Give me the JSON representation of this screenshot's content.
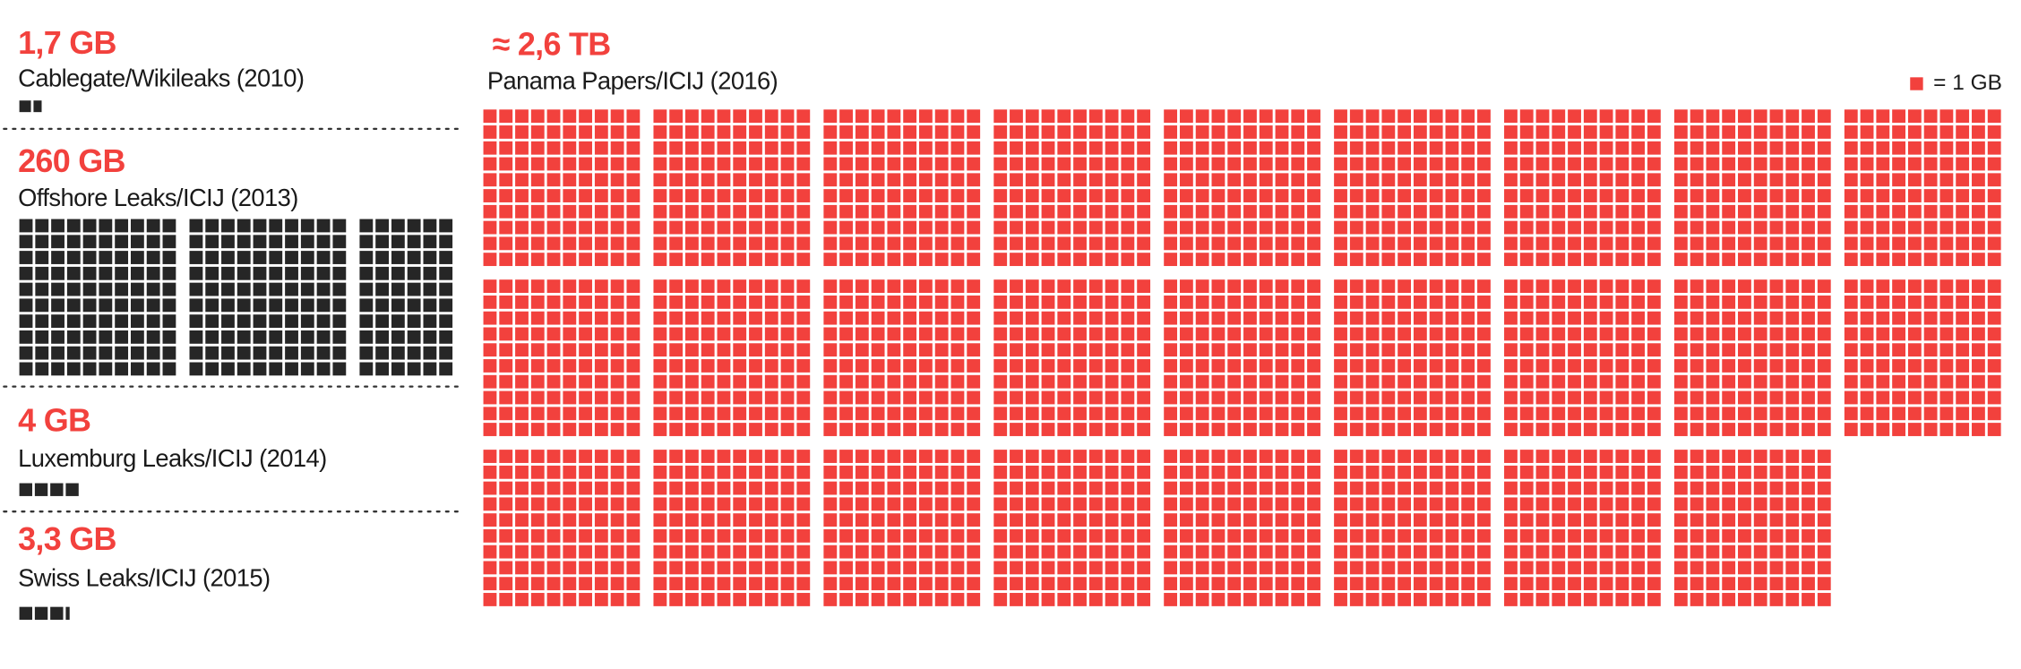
{
  "chart_data": {
    "type": "waffle",
    "unit_label": "= 1 GB",
    "unit_value": 1,
    "legend_color": "#f2413d",
    "items": [
      {
        "size_label": "1,7 GB",
        "name": "Cablegate/Wikileaks (2010)",
        "value": 1.7,
        "color": "#262626"
      },
      {
        "size_label": "260 GB",
        "name": "Offshore Leaks/ICIJ (2013)",
        "value": 260,
        "color": "#262626"
      },
      {
        "size_label": "4 GB",
        "name": "Luxemburg Leaks/ICIJ (2014)",
        "value": 4,
        "color": "#262626"
      },
      {
        "size_label": "3,3 GB",
        "name": "Swiss Leaks/ICIJ (2015)",
        "value": 3.3,
        "color": "#262626"
      },
      {
        "size_label": "≈ 2,6 TB",
        "name": "Panama Papers/ICIJ (2016)",
        "value": 2600,
        "color": "#f2413d"
      }
    ]
  }
}
